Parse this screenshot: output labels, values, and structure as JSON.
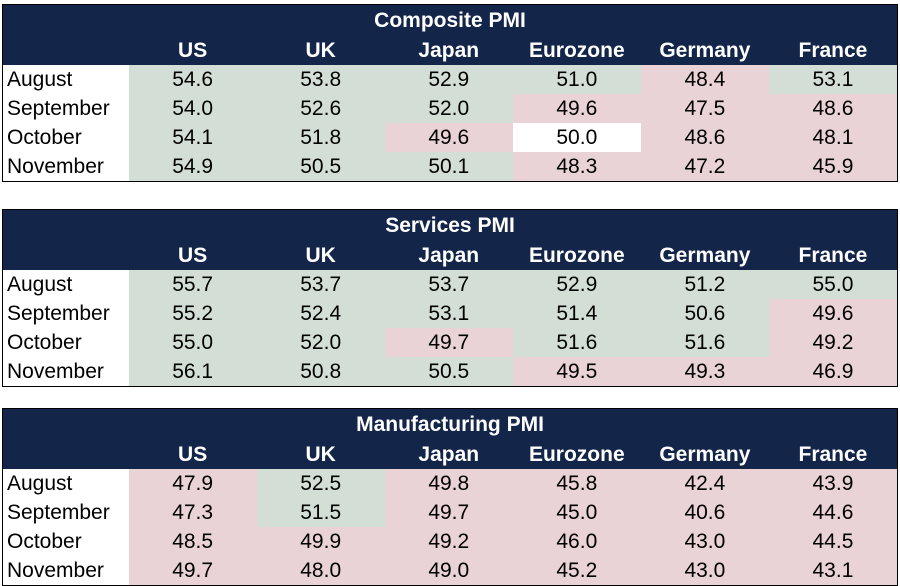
{
  "colors": {
    "header_bg": "#14254a",
    "header_text": "#ffffff",
    "above_50": "#d3dfd6",
    "below_50": "#ead3d6",
    "neutral": "#ffffff"
  },
  "chart_data": [
    {
      "type": "table",
      "title": "Composite PMI",
      "columns": [
        "US",
        "UK",
        "Japan",
        "Eurozone",
        "Germany",
        "France"
      ],
      "rows": [
        {
          "label": "August",
          "values": [
            "54.6",
            "53.8",
            "52.9",
            "51.0",
            "48.4",
            "53.1"
          ]
        },
        {
          "label": "September",
          "values": [
            "54.0",
            "52.6",
            "52.0",
            "49.6",
            "47.5",
            "48.6"
          ]
        },
        {
          "label": "October",
          "values": [
            "54.1",
            "51.8",
            "49.6",
            "50.0",
            "48.6",
            "48.1"
          ]
        },
        {
          "label": "November",
          "values": [
            "54.9",
            "50.5",
            "50.1",
            "48.3",
            "47.2",
            "45.9"
          ]
        }
      ]
    },
    {
      "type": "table",
      "title": "Services PMI",
      "columns": [
        "US",
        "UK",
        "Japan",
        "Eurozone",
        "Germany",
        "France"
      ],
      "rows": [
        {
          "label": "August",
          "values": [
            "55.7",
            "53.7",
            "53.7",
            "52.9",
            "51.2",
            "55.0"
          ]
        },
        {
          "label": "September",
          "values": [
            "55.2",
            "52.4",
            "53.1",
            "51.4",
            "50.6",
            "49.6"
          ]
        },
        {
          "label": "October",
          "values": [
            "55.0",
            "52.0",
            "49.7",
            "51.6",
            "51.6",
            "49.2"
          ]
        },
        {
          "label": "November",
          "values": [
            "56.1",
            "50.8",
            "50.5",
            "49.5",
            "49.3",
            "46.9"
          ]
        }
      ]
    },
    {
      "type": "table",
      "title": "Manufacturing PMI",
      "columns": [
        "US",
        "UK",
        "Japan",
        "Eurozone",
        "Germany",
        "France"
      ],
      "rows": [
        {
          "label": "August",
          "values": [
            "47.9",
            "52.5",
            "49.8",
            "45.8",
            "42.4",
            "43.9"
          ]
        },
        {
          "label": "September",
          "values": [
            "47.3",
            "51.5",
            "49.7",
            "45.0",
            "40.6",
            "44.6"
          ]
        },
        {
          "label": "October",
          "values": [
            "48.5",
            "49.9",
            "49.2",
            "46.0",
            "43.0",
            "44.5"
          ]
        },
        {
          "label": "November",
          "values": [
            "49.7",
            "48.0",
            "49.0",
            "45.2",
            "43.0",
            "43.1"
          ]
        }
      ]
    }
  ]
}
